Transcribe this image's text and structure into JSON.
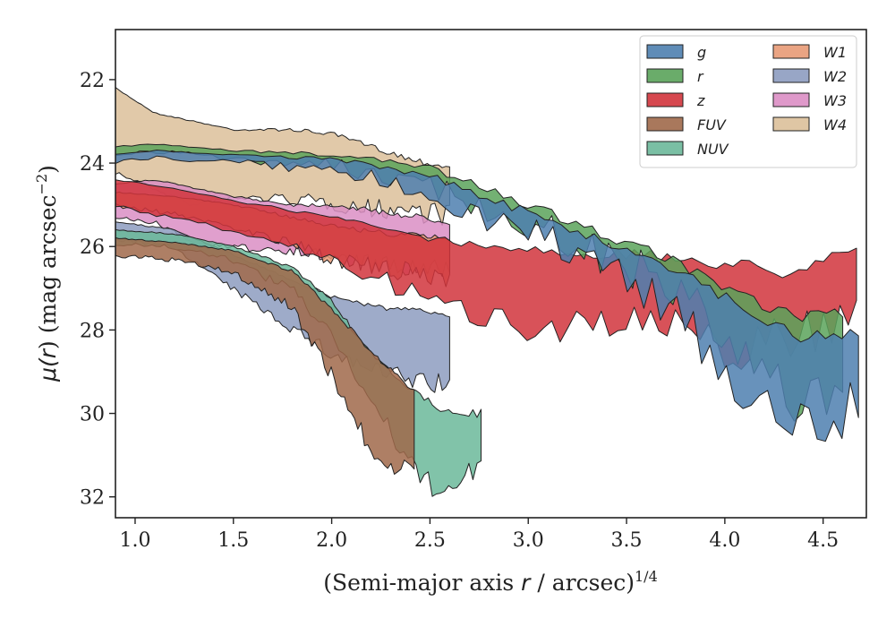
{
  "chart_data": {
    "type": "area",
    "xlabel_main": "(Semi-major axis ",
    "xlabel_var": "r",
    "xlabel_unit": " / arcsec)",
    "xlabel_exp": "1/4",
    "ylabel_mu": "μ(",
    "ylabel_var": "r",
    "ylabel_rest": ") (mag arcsec",
    "ylabel_exp": "−2",
    "ylabel_close": ")",
    "xlim": [
      0.9,
      4.72
    ],
    "ylim": [
      32.5,
      20.8
    ],
    "y_inverted": true,
    "xticks": [
      1.0,
      1.5,
      2.0,
      2.5,
      3.0,
      3.5,
      4.0,
      4.5
    ],
    "xtick_labels": [
      "1.0",
      "1.5",
      "2.0",
      "2.5",
      "3.0",
      "3.5",
      "4.0",
      "4.5"
    ],
    "yticks": [
      22,
      24,
      26,
      28,
      30,
      32
    ],
    "ytick_labels": [
      "22",
      "24",
      "26",
      "28",
      "30",
      "32"
    ],
    "legend_position": "top-right",
    "grid": false,
    "series": [
      {
        "name": "g",
        "color": "#4e7faf",
        "x_start": 0.9,
        "x_end": 4.68,
        "upper": [
          [
            0.9,
            23.8
          ],
          [
            1.1,
            23.7
          ],
          [
            1.5,
            23.8
          ],
          [
            2.0,
            23.9
          ],
          [
            2.5,
            24.3
          ],
          [
            3.0,
            25.2
          ],
          [
            3.5,
            26.1
          ],
          [
            3.8,
            26.6
          ],
          [
            4.0,
            27.2
          ],
          [
            4.2,
            27.8
          ],
          [
            4.4,
            28.2
          ],
          [
            4.68,
            28.0
          ]
        ],
        "lower": [
          [
            0.9,
            23.95
          ],
          [
            1.1,
            23.85
          ],
          [
            1.5,
            23.95
          ],
          [
            2.0,
            24.1
          ],
          [
            2.5,
            24.6
          ],
          [
            3.0,
            25.5
          ],
          [
            3.5,
            26.5
          ],
          [
            3.8,
            27.4
          ],
          [
            4.0,
            28.8
          ],
          [
            4.2,
            29.6
          ],
          [
            4.4,
            29.9
          ],
          [
            4.68,
            29.5
          ]
        ]
      },
      {
        "name": "r",
        "color": "#5aa35a",
        "x_start": 0.9,
        "x_end": 4.6,
        "upper": [
          [
            0.9,
            23.6
          ],
          [
            1.1,
            23.55
          ],
          [
            1.5,
            23.7
          ],
          [
            2.0,
            23.8
          ],
          [
            2.5,
            24.1
          ],
          [
            3.0,
            25.0
          ],
          [
            3.5,
            25.9
          ],
          [
            3.8,
            26.5
          ],
          [
            4.0,
            27.0
          ],
          [
            4.2,
            27.5
          ],
          [
            4.4,
            27.7
          ],
          [
            4.6,
            27.6
          ]
        ],
        "lower": [
          [
            0.9,
            23.75
          ],
          [
            1.1,
            23.7
          ],
          [
            1.5,
            23.85
          ],
          [
            2.0,
            24.0
          ],
          [
            2.5,
            24.4
          ],
          [
            3.0,
            25.3
          ],
          [
            3.5,
            26.2
          ],
          [
            3.8,
            27.0
          ],
          [
            4.0,
            28.1
          ],
          [
            4.2,
            28.9
          ],
          [
            4.4,
            29.4
          ],
          [
            4.6,
            29.1
          ]
        ]
      },
      {
        "name": "z",
        "color": "#d1343c",
        "x_start": 0.9,
        "x_end": 4.67,
        "upper": [
          [
            0.9,
            24.4
          ],
          [
            1.2,
            24.6
          ],
          [
            1.5,
            24.9
          ],
          [
            2.0,
            25.3
          ],
          [
            2.5,
            25.8
          ],
          [
            3.0,
            26.1
          ],
          [
            3.5,
            26.2
          ],
          [
            4.0,
            26.4
          ],
          [
            4.3,
            26.6
          ],
          [
            4.67,
            26.0
          ]
        ],
        "lower": [
          [
            0.9,
            25.0
          ],
          [
            1.2,
            25.3
          ],
          [
            1.5,
            25.6
          ],
          [
            2.0,
            26.2
          ],
          [
            2.5,
            27.2
          ],
          [
            3.0,
            27.7
          ],
          [
            3.5,
            27.6
          ],
          [
            4.0,
            28.1
          ],
          [
            4.3,
            28.0
          ],
          [
            4.67,
            27.3
          ]
        ]
      },
      {
        "name": "FUV",
        "color": "#a0694a",
        "x_start": 0.9,
        "x_end": 2.42,
        "upper": [
          [
            0.9,
            25.8
          ],
          [
            1.2,
            25.9
          ],
          [
            1.5,
            26.1
          ],
          [
            1.8,
            26.6
          ],
          [
            2.0,
            27.5
          ],
          [
            2.2,
            28.5
          ],
          [
            2.42,
            29.5
          ]
        ],
        "lower": [
          [
            0.9,
            26.2
          ],
          [
            1.2,
            26.3
          ],
          [
            1.5,
            26.6
          ],
          [
            1.8,
            27.4
          ],
          [
            2.0,
            29.0
          ],
          [
            2.2,
            30.8
          ],
          [
            2.42,
            31.4
          ]
        ]
      },
      {
        "name": "NUV",
        "color": "#6bb89a",
        "x_start": 0.9,
        "x_end": 2.76,
        "upper": [
          [
            0.9,
            25.6
          ],
          [
            1.2,
            25.7
          ],
          [
            1.5,
            26.0
          ],
          [
            1.8,
            26.5
          ],
          [
            2.0,
            27.3
          ],
          [
            2.2,
            28.6
          ],
          [
            2.45,
            29.6
          ],
          [
            2.6,
            30.0
          ],
          [
            2.76,
            30.0
          ]
        ],
        "lower": [
          [
            0.9,
            25.9
          ],
          [
            1.2,
            26.0
          ],
          [
            1.5,
            26.3
          ],
          [
            1.8,
            27.0
          ],
          [
            2.0,
            28.0
          ],
          [
            2.2,
            29.6
          ],
          [
            2.45,
            31.5
          ],
          [
            2.6,
            31.7
          ],
          [
            2.76,
            31.2
          ]
        ]
      },
      {
        "name": "W1",
        "color": "#e89a76",
        "x_start": 0.9,
        "x_end": 2.6,
        "upper": [
          [
            0.9,
            24.7
          ],
          [
            1.2,
            24.8
          ],
          [
            1.5,
            25.0
          ],
          [
            1.8,
            25.3
          ],
          [
            2.0,
            25.5
          ],
          [
            2.3,
            25.7
          ],
          [
            2.6,
            25.8
          ]
        ],
        "lower": [
          [
            0.9,
            25.0
          ],
          [
            1.2,
            25.2
          ],
          [
            1.5,
            25.5
          ],
          [
            1.8,
            25.9
          ],
          [
            2.0,
            26.2
          ],
          [
            2.3,
            26.5
          ],
          [
            2.6,
            26.6
          ]
        ]
      },
      {
        "name": "W2",
        "color": "#8d9cc0",
        "x_start": 0.9,
        "x_end": 2.6,
        "upper": [
          [
            0.9,
            25.4
          ],
          [
            1.2,
            25.6
          ],
          [
            1.5,
            26.2
          ],
          [
            1.8,
            26.8
          ],
          [
            2.0,
            27.2
          ],
          [
            2.3,
            27.5
          ],
          [
            2.6,
            27.6
          ]
        ],
        "lower": [
          [
            0.9,
            25.8
          ],
          [
            1.2,
            26.0
          ],
          [
            1.5,
            27.0
          ],
          [
            1.8,
            27.9
          ],
          [
            2.0,
            28.5
          ],
          [
            2.3,
            29.0
          ],
          [
            2.6,
            29.2
          ]
        ]
      },
      {
        "name": "W3",
        "color": "#db8ec4",
        "x_start": 0.9,
        "x_end": 2.6,
        "upper": [
          [
            0.9,
            24.5
          ],
          [
            1.1,
            24.4
          ],
          [
            1.3,
            24.6
          ],
          [
            1.5,
            24.8
          ],
          [
            1.8,
            25.0
          ],
          [
            2.0,
            25.0
          ],
          [
            2.3,
            25.2
          ],
          [
            2.6,
            25.4
          ]
        ],
        "lower": [
          [
            0.9,
            25.3
          ],
          [
            1.1,
            25.4
          ],
          [
            1.3,
            25.9
          ],
          [
            1.5,
            26.0
          ],
          [
            1.8,
            26.0
          ],
          [
            2.0,
            26.2
          ],
          [
            2.3,
            26.4
          ],
          [
            2.6,
            26.5
          ]
        ]
      },
      {
        "name": "W4",
        "color": "#dcc09a",
        "x_start": 0.9,
        "x_end": 2.6,
        "upper": [
          [
            0.9,
            22.2
          ],
          [
            1.1,
            22.8
          ],
          [
            1.3,
            23.0
          ],
          [
            1.5,
            23.2
          ],
          [
            1.8,
            23.2
          ],
          [
            2.0,
            23.3
          ],
          [
            2.2,
            23.6
          ],
          [
            2.4,
            23.9
          ],
          [
            2.6,
            24.1
          ]
        ],
        "lower": [
          [
            0.9,
            24.2
          ],
          [
            1.1,
            24.6
          ],
          [
            1.3,
            25.0
          ],
          [
            1.5,
            24.8
          ],
          [
            1.8,
            24.8
          ],
          [
            2.0,
            24.9
          ],
          [
            2.2,
            25.0
          ],
          [
            2.4,
            25.0
          ],
          [
            2.6,
            25.1
          ]
        ]
      }
    ]
  }
}
